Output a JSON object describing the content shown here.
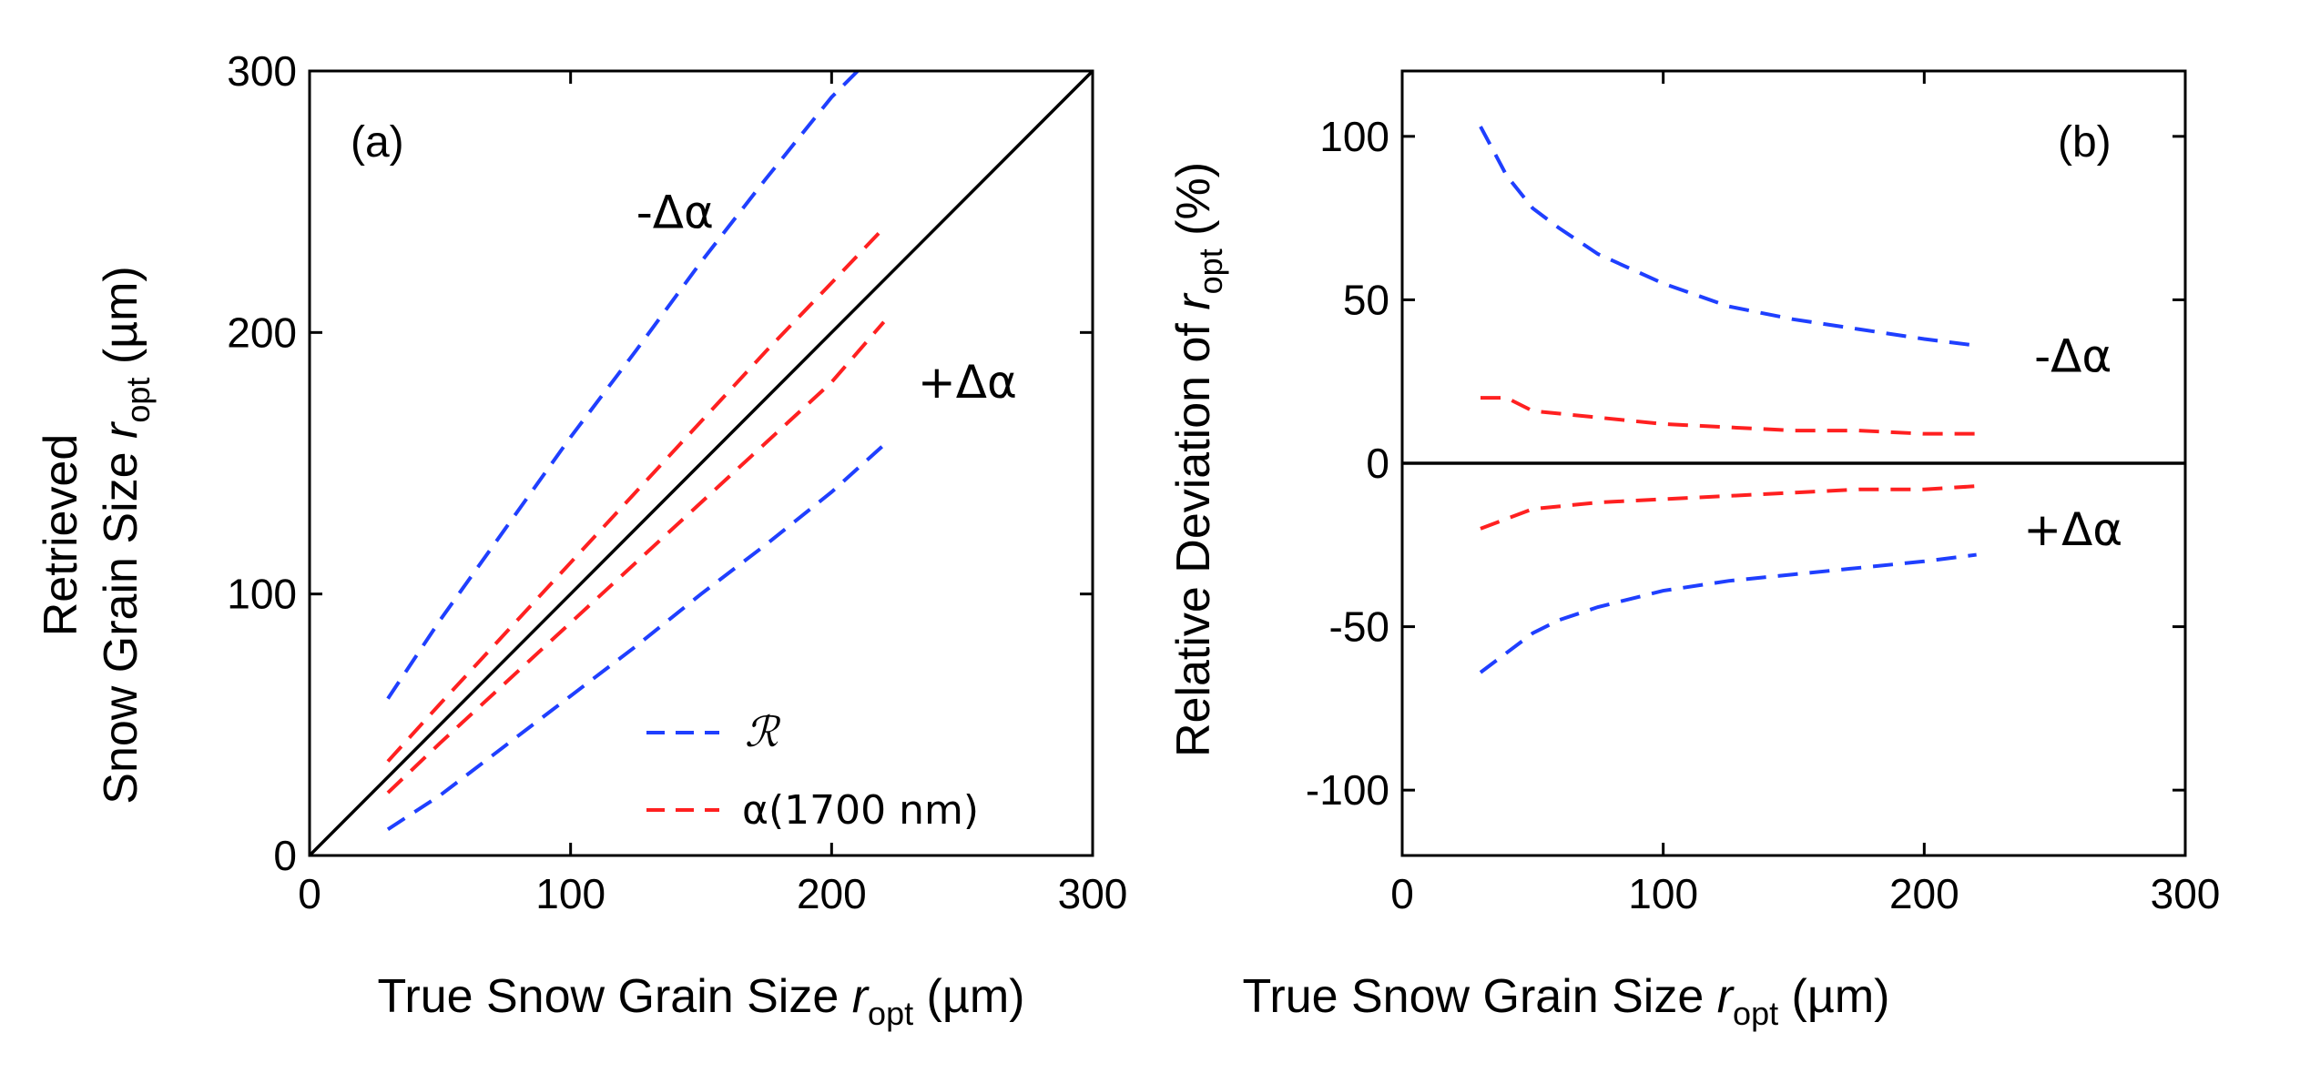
{
  "chart_data": [
    {
      "type": "line",
      "panel": "(a)",
      "xlabel": "True Snow Grain Size ",
      "xlabel_var": "r",
      "xlabel_sub": "opt",
      "xlabel_unit": " (µm)",
      "ylabel_line1": "Retrieved",
      "ylabel_line2": "Snow Grain Size ",
      "ylabel_var": "r",
      "ylabel_sub": "opt",
      "ylabel_unit": " (µm)",
      "xlim": [
        0,
        300
      ],
      "ylim": [
        0,
        300
      ],
      "xticks": [
        "0",
        "100",
        "200",
        "300"
      ],
      "yticks": [
        "0",
        "100",
        "200",
        "300"
      ],
      "grid": false,
      "legend_placement": "bottom-right",
      "legend": [
        {
          "label": "ℛ",
          "color": "#1f3fff"
        },
        {
          "label": "α(1700 nm)",
          "color": "#ff2020"
        }
      ],
      "annotations": [
        {
          "text": "-Δα",
          "x": 140,
          "y": 240
        },
        {
          "text": "+Δα",
          "x": 252,
          "y": 175
        }
      ],
      "series": [
        {
          "style": "solid",
          "color": "#000000",
          "x": [
            0,
            300
          ],
          "y": [
            0,
            300
          ]
        },
        {
          "style": "dashed",
          "color": "#1f3fff",
          "x": [
            30,
            50,
            75,
            100,
            125,
            150,
            175,
            200,
            215
          ],
          "y": [
            60,
            90,
            125,
            160,
            193,
            227,
            259,
            290,
            305
          ]
        },
        {
          "style": "dashed",
          "color": "#1f3fff",
          "x": [
            30,
            50,
            75,
            100,
            125,
            150,
            175,
            200,
            220
          ],
          "y": [
            10,
            23,
            42,
            61,
            80,
            100,
            119,
            139,
            157
          ]
        },
        {
          "style": "dashed",
          "color": "#ff2020",
          "x": [
            30,
            50,
            75,
            100,
            125,
            150,
            175,
            200,
            220
          ],
          "y": [
            36,
            58,
            85,
            112,
            139,
            166,
            193,
            219,
            240
          ]
        },
        {
          "style": "dashed",
          "color": "#ff2020",
          "x": [
            30,
            50,
            75,
            100,
            125,
            150,
            175,
            200,
            220
          ],
          "y": [
            24,
            43,
            66,
            89,
            112,
            135,
            158,
            181,
            204
          ]
        }
      ]
    },
    {
      "type": "line",
      "panel": "(b)",
      "xlabel": "True Snow Grain Size ",
      "xlabel_var": "r",
      "xlabel_sub": "opt",
      "xlabel_unit": " (µm)",
      "ylabel": "Relative Deviation of ",
      "ylabel_var": "r",
      "ylabel_sub": "opt",
      "ylabel_unit": " (%)",
      "xlim": [
        0,
        300
      ],
      "ylim": [
        -120,
        120
      ],
      "xticks": [
        "0",
        "100",
        "200",
        "300"
      ],
      "yticks": [
        "-100",
        "-50",
        "0",
        "50",
        "100"
      ],
      "grid": false,
      "annotations": [
        {
          "text": "-Δα",
          "x": 257,
          "y": 28
        },
        {
          "text": "+Δα",
          "x": 257,
          "y": -25
        }
      ],
      "series": [
        {
          "style": "solid",
          "color": "#000000",
          "x": [
            0,
            300
          ],
          "y": [
            0,
            0
          ]
        },
        {
          "style": "dashed",
          "color": "#1f3fff",
          "x": [
            30,
            40,
            50,
            60,
            75,
            100,
            125,
            150,
            175,
            200,
            220
          ],
          "y": [
            103,
            88,
            78,
            72,
            64,
            55,
            48,
            44,
            41,
            38,
            36
          ]
        },
        {
          "style": "dashed",
          "color": "#ff2020",
          "x": [
            30,
            40,
            50,
            75,
            100,
            125,
            150,
            175,
            200,
            220
          ],
          "y": [
            20,
            20,
            16,
            14,
            12,
            11,
            10,
            10,
            9,
            9
          ]
        },
        {
          "style": "dashed",
          "color": "#ff2020",
          "x": [
            30,
            40,
            50,
            75,
            100,
            125,
            150,
            175,
            200,
            220
          ],
          "y": [
            -20,
            -17,
            -14,
            -12,
            -11,
            -10,
            -9,
            -8,
            -8,
            -7
          ]
        },
        {
          "style": "dashed",
          "color": "#1f3fff",
          "x": [
            30,
            40,
            50,
            60,
            75,
            100,
            125,
            150,
            175,
            200,
            220
          ],
          "y": [
            -64,
            -58,
            -52,
            -48,
            -44,
            -39,
            -36,
            -34,
            -32,
            -30,
            -28
          ]
        }
      ]
    }
  ]
}
